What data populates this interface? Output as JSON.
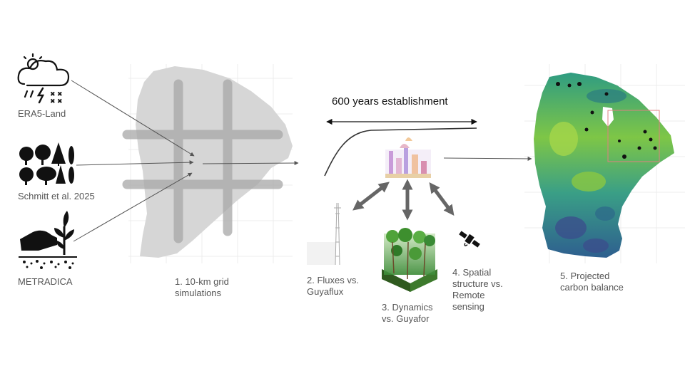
{
  "inputs": [
    {
      "label": "ERA5-Land",
      "icon": "rain-cloud-icon"
    },
    {
      "label": "Schmitt et al. 2025",
      "icon": "tree-species-icon"
    },
    {
      "label": "METRADICA",
      "icon": "plant-in-hand-icon"
    }
  ],
  "steps": {
    "grid": "1. 10-km grid\nsimulations",
    "fluxes": "2. Fluxes vs.\nGuyaflux",
    "dynamics": "3. Dynamics\nvs. Guyafor",
    "spatial": "4. Spatial\nstructure vs.\nRemote\nsensing",
    "projected": "5. Projected\ncarbon balance"
  },
  "establishment": "600 years establishment",
  "colors": {
    "map_gray": "#d6d6d6",
    "grid_bar": "#a8a8a8",
    "carbon_low": "#3b4d8c",
    "carbon_mid": "#2a8b7f",
    "carbon_high": "#8fca3e",
    "arrow": "#555555"
  }
}
